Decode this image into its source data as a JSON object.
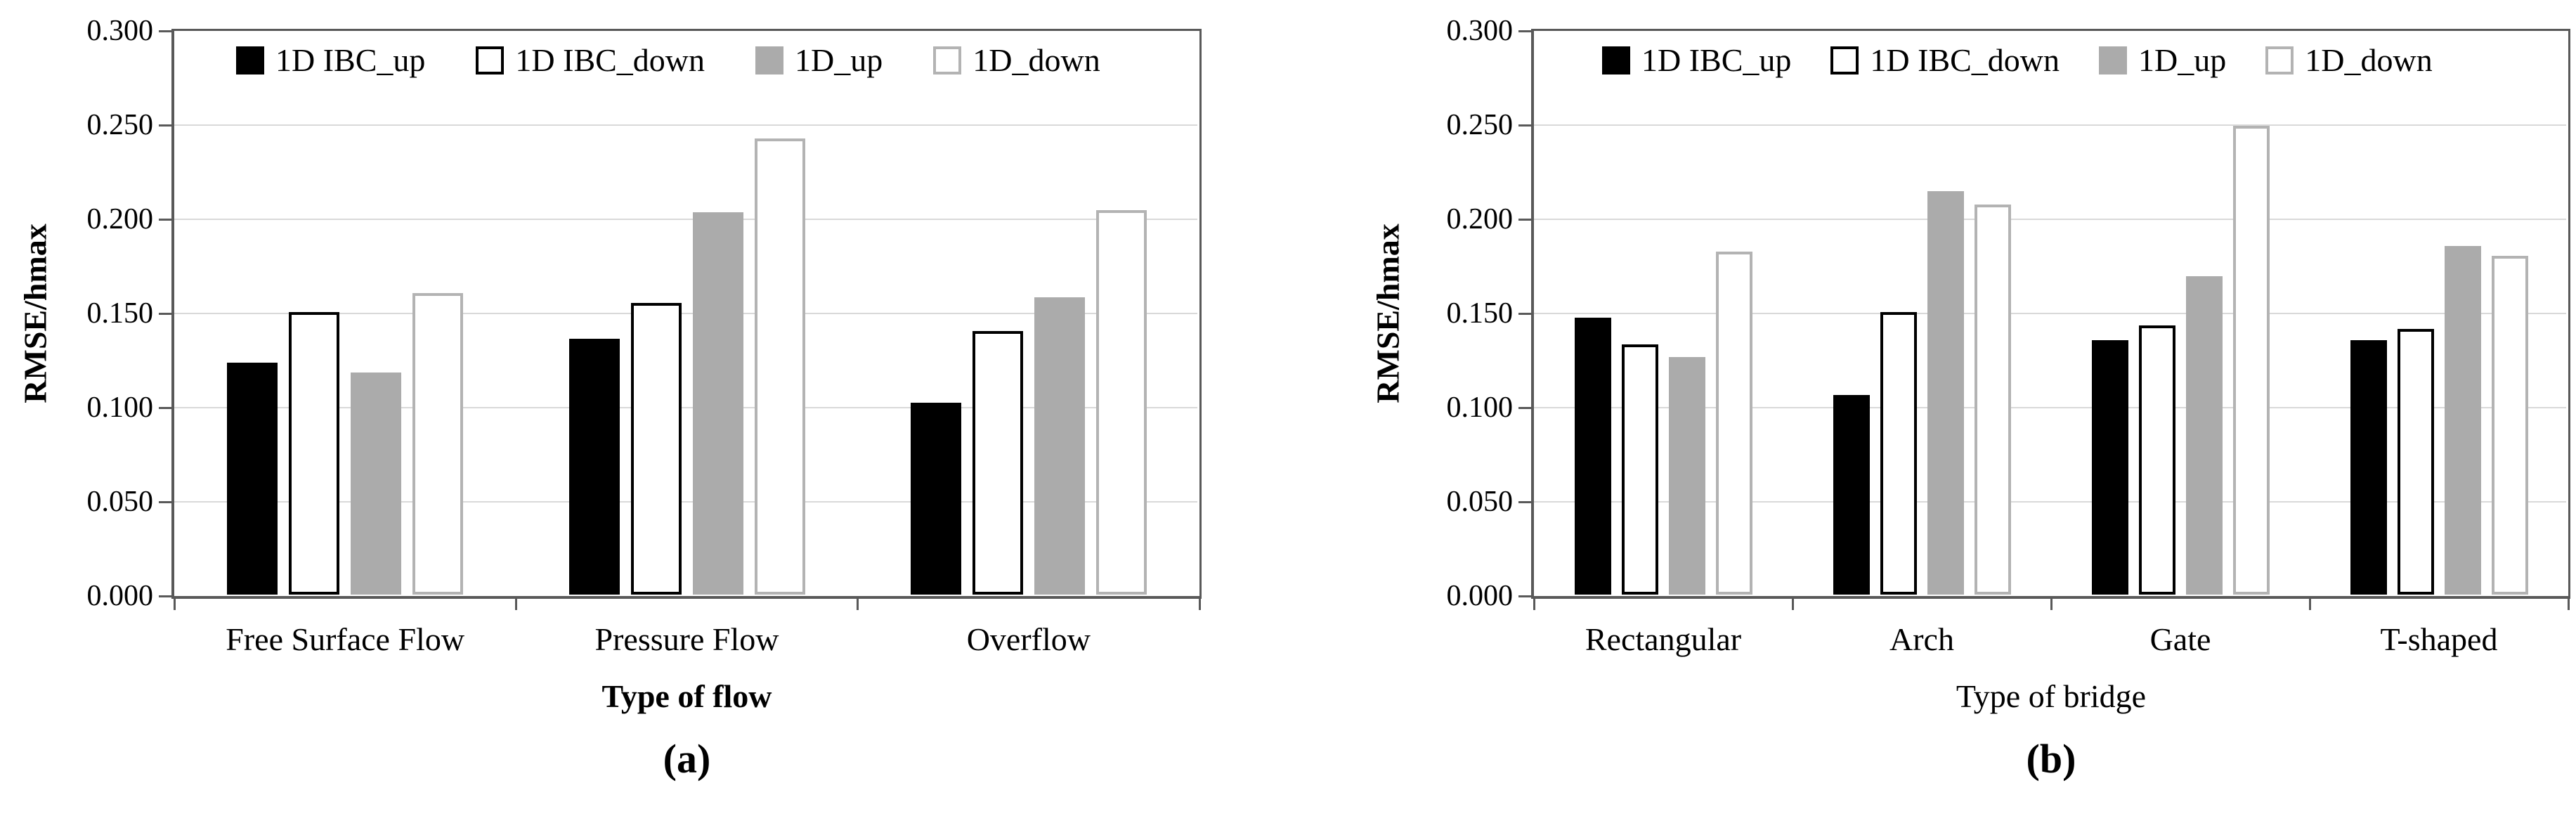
{
  "figure": {
    "background": "#ffffff",
    "axis_color": "#595959",
    "gridline_color": "#d9d9d9",
    "text_color": "#000000"
  },
  "chart_data": [
    {
      "type": "bar",
      "panel": "a",
      "caption": "(a)",
      "xlabel": "Type of flow",
      "xlabel_bold": true,
      "ylabel": "RMSE/hmax",
      "ylim": [
        0.0,
        0.3
      ],
      "ytick_step": 0.05,
      "ytick_labels": [
        "0.000",
        "0.050",
        "0.100",
        "0.150",
        "0.200",
        "0.250",
        "0.300"
      ],
      "grid": "horizontal",
      "legend_position": "top-inside",
      "categories": [
        "Free Surface Flow",
        "Pressure Flow",
        "Overflow"
      ],
      "series": [
        {
          "name": "1D IBC_up",
          "values": [
            0.123,
            0.136,
            0.102
          ],
          "fill": "#000000",
          "border": "#000000"
        },
        {
          "name": "1D IBC_down",
          "values": [
            0.15,
            0.155,
            0.14
          ],
          "fill": "#ffffff",
          "border": "#000000"
        },
        {
          "name": "1D_up",
          "values": [
            0.118,
            0.203,
            0.158
          ],
          "fill": "#ababab",
          "border": "#ababab"
        },
        {
          "name": "1D_down",
          "values": [
            0.16,
            0.242,
            0.204
          ],
          "fill": "#ffffff",
          "border": "#b3b3b3"
        }
      ]
    },
    {
      "type": "bar",
      "panel": "b",
      "caption": "(b)",
      "xlabel": "Type of bridge",
      "xlabel_bold": false,
      "ylabel": "RMSE/hmax",
      "ylim": [
        0.0,
        0.3
      ],
      "ytick_step": 0.05,
      "ytick_labels": [
        "0.000",
        "0.050",
        "0.100",
        "0.150",
        "0.200",
        "0.250",
        "0.300"
      ],
      "grid": "horizontal",
      "legend_position": "top-inside",
      "categories": [
        "Rectangular",
        "Arch",
        "Gate",
        "T-shaped"
      ],
      "series": [
        {
          "name": "1D IBC_up",
          "values": [
            0.147,
            0.106,
            0.135,
            0.135
          ],
          "fill": "#000000",
          "border": "#000000"
        },
        {
          "name": "1D IBC_down",
          "values": [
            0.133,
            0.15,
            0.143,
            0.141
          ],
          "fill": "#ffffff",
          "border": "#000000"
        },
        {
          "name": "1D_up",
          "values": [
            0.126,
            0.214,
            0.169,
            0.185
          ],
          "fill": "#ababab",
          "border": "#ababab"
        },
        {
          "name": "1D_down",
          "values": [
            0.182,
            0.207,
            0.249,
            0.18
          ],
          "fill": "#ffffff",
          "border": "#b3b3b3"
        }
      ]
    }
  ]
}
